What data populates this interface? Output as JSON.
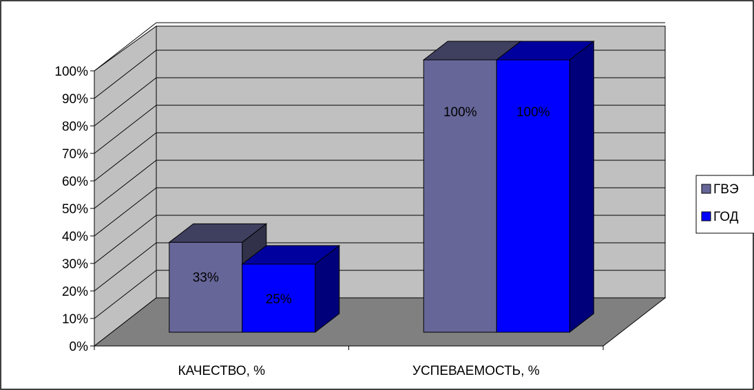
{
  "chart_data": {
    "type": "bar",
    "categories": [
      "КАЧЕСТВО, %",
      "УСПЕВАЕМОСТЬ, %"
    ],
    "series": [
      {
        "name": "ГВЭ",
        "values": [
          33,
          100
        ],
        "labels": [
          "33%",
          "100%"
        ],
        "color": "#666699"
      },
      {
        "name": "ГОД",
        "values": [
          25,
          100
        ],
        "labels": [
          "25%",
          "100%"
        ],
        "color": "#0000FF"
      }
    ],
    "yticks": [
      "0%",
      "10%",
      "20%",
      "30%",
      "40%",
      "50%",
      "60%",
      "70%",
      "80%",
      "90%",
      "100%"
    ],
    "ylim": [
      0,
      100
    ],
    "grid": true,
    "three_d": true,
    "legend_position": "right",
    "wall_color": "#C0C0C0",
    "floor_color": "#808080"
  }
}
